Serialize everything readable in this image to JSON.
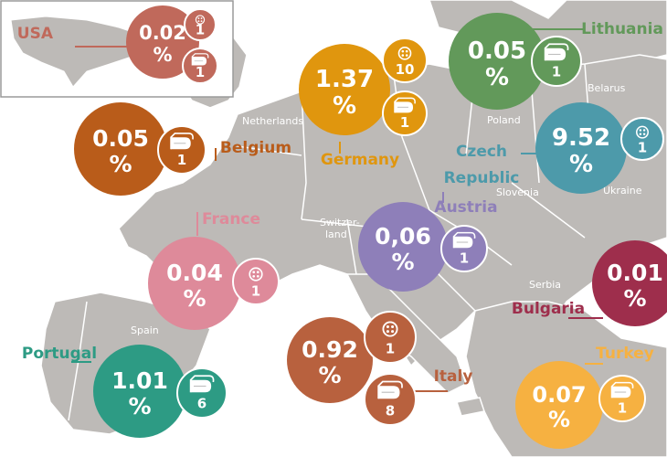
{
  "colors": {
    "sea": "#ffffff",
    "land": "#bdbab7",
    "border": "#ffffff",
    "inset_frame": "#9a9a9a"
  },
  "map_labels": {
    "netherlands": "Netherlands",
    "belarus": "Belarus",
    "poland": "Poland",
    "slovenia": "Slovenia",
    "ukraine": "Ukraine",
    "switzerland_line1": "Switzer-",
    "switzerland_line2": "land",
    "spain": "Spain",
    "serbia": "Serbia"
  },
  "icons": {
    "button": "button-icon",
    "fabric": "fabric-roll-icon"
  },
  "countries": [
    {
      "id": "usa",
      "name": "USA",
      "value_line1": "0.02",
      "value_line2": "%",
      "color": "#c0695b",
      "badges": [
        {
          "icon": "button",
          "count": "1"
        },
        {
          "icon": "fabric",
          "count": "1"
        }
      ]
    },
    {
      "id": "germany",
      "name": "Germany",
      "value_line1": "1.37",
      "value_line2": "%",
      "color": "#e0960e",
      "badges": [
        {
          "icon": "button",
          "count": "10"
        },
        {
          "icon": "fabric",
          "count": "1"
        }
      ]
    },
    {
      "id": "lithuania",
      "name": "Lithuania",
      "value_line1": "0.05",
      "value_line2": "%",
      "color": "#62995a",
      "badges": [
        {
          "icon": "fabric",
          "count": "1"
        }
      ]
    },
    {
      "id": "belgium",
      "name": "Belgium",
      "value_line1": "0.05",
      "value_line2": "%",
      "color": "#b95c1a",
      "badges": [
        {
          "icon": "fabric",
          "count": "1"
        }
      ]
    },
    {
      "id": "czech",
      "name_line1": "Czech",
      "name_line2": "Republic",
      "value_line1": "9.52",
      "value_line2": "%",
      "color": "#4d9aaa",
      "badges": [
        {
          "icon": "button",
          "count": "1"
        }
      ]
    },
    {
      "id": "austria",
      "name": "Austria",
      "value_line1": "0,06",
      "value_line2": "%",
      "color": "#8e7fb9",
      "badges": [
        {
          "icon": "fabric",
          "count": "1"
        }
      ]
    },
    {
      "id": "france",
      "name": "France",
      "value_line1": "0.04",
      "value_line2": "%",
      "color": "#de8a9a",
      "badges": [
        {
          "icon": "button",
          "count": "1"
        }
      ]
    },
    {
      "id": "bulgaria",
      "name": "Bulgaria",
      "value_line1": "0.01",
      "value_line2": "%",
      "color": "#9e2e4c",
      "badges": []
    },
    {
      "id": "portugal",
      "name": "Portugal",
      "value_line1": "1.01",
      "value_line2": "%",
      "color": "#2d9b84",
      "badges": [
        {
          "icon": "fabric",
          "count": "6"
        }
      ]
    },
    {
      "id": "italy",
      "name": "Italy",
      "value_line1": "0.92",
      "value_line2": "%",
      "color": "#b8613e",
      "badges": [
        {
          "icon": "button",
          "count": "1"
        },
        {
          "icon": "fabric",
          "count": "8"
        }
      ]
    },
    {
      "id": "turkey",
      "name": "Turkey",
      "value_line1": "0.07",
      "value_line2": "%",
      "color": "#f6b141",
      "badges": [
        {
          "icon": "fabric",
          "count": "1"
        }
      ]
    }
  ]
}
